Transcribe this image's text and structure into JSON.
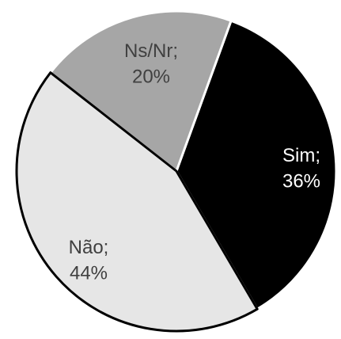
{
  "chart_data": {
    "type": "pie",
    "slices": [
      {
        "category": "Sim",
        "value": 36,
        "value_text": "36%",
        "color": "#000000",
        "label_color": "#ffffff",
        "outline": "#ffffff"
      },
      {
        "category": "Não",
        "value": 44,
        "value_text": "44%",
        "color": "#e6e6e6",
        "label_color": "#404040",
        "outline": "#000000"
      },
      {
        "category": "Ns/Nr",
        "value": 20,
        "value_text": "20%",
        "color": "#a6a6a6",
        "label_color": "#404040",
        "outline": "#ffffff"
      }
    ],
    "separator": ";",
    "start_slice": "Sim",
    "direction": "clockwise",
    "legend": "none",
    "title": ""
  }
}
